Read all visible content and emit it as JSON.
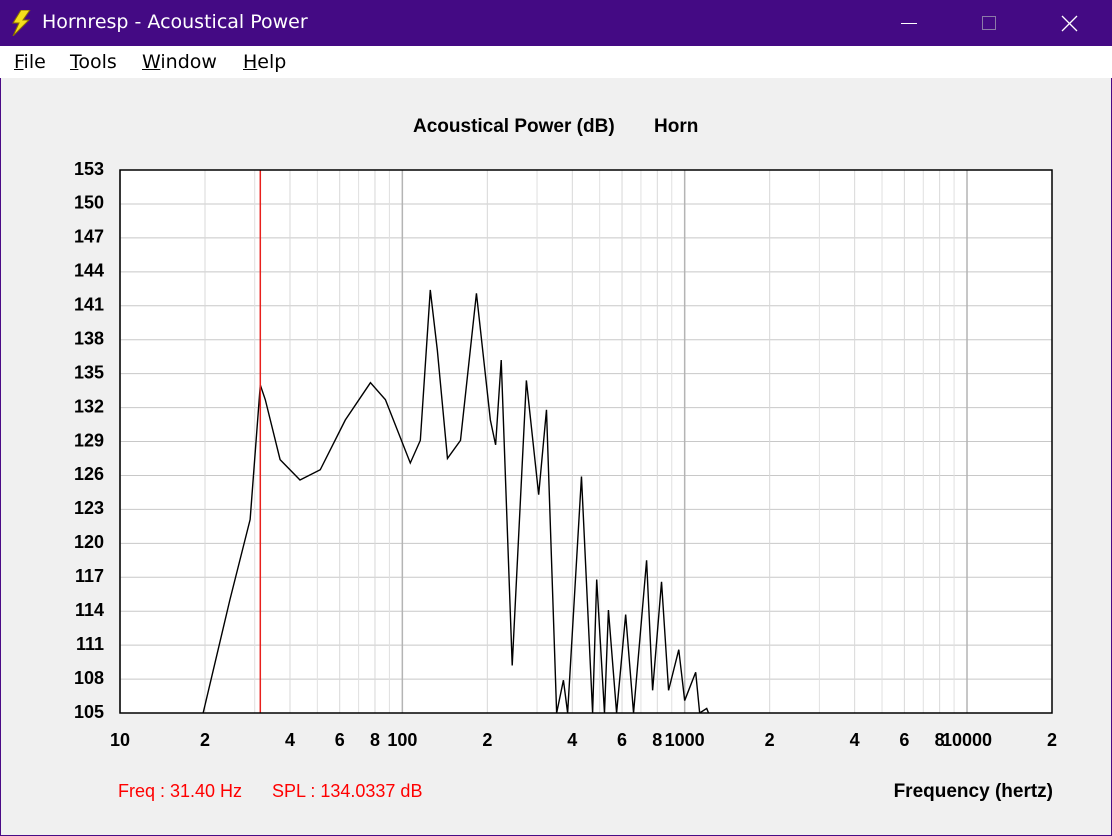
{
  "window": {
    "title": "Hornresp - Acoustical Power"
  },
  "menu": [
    "File",
    "Tools",
    "Window",
    "Help"
  ],
  "chart_data": {
    "type": "line",
    "title": "Acoustical Power (dB)",
    "subtitle": "Horn",
    "x_label": "Frequency (hertz)",
    "log_x": true,
    "grid": true,
    "color": "#000000",
    "x": [
      19.7,
      24.5,
      28.9,
      31.4,
      32.7,
      36.9,
      43.4,
      51.2,
      62.8,
      77.1,
      87.1,
      106.7,
      115.8,
      125.6,
      133,
      144.5,
      160.7,
      183,
      205,
      214,
      224,
      245,
      275,
      304,
      324,
      352,
      372,
      385,
      431,
      472,
      488,
      520,
      537,
      574,
      618,
      659,
      733,
      770,
      828,
      877,
      953,
      1000,
      1094,
      1130,
      1197,
      1215
    ],
    "values": [
      105,
      115,
      122.1,
      134,
      132.7,
      127.4,
      125.6,
      126.5,
      130.9,
      134.2,
      132.7,
      127.1,
      129.1,
      142.4,
      137.1,
      127.5,
      129.1,
      142.1,
      130.9,
      128.7,
      136.2,
      109.2,
      134.4,
      124.3,
      131.8,
      105,
      107.9,
      105,
      125.9,
      105,
      116.8,
      105,
      114.1,
      105,
      113.7,
      105,
      118.5,
      107,
      116.6,
      107,
      110.6,
      106.1,
      108.6,
      105,
      105.4,
      105
    ],
    "xlim": [
      10,
      20000
    ],
    "ylim": [
      105,
      153
    ],
    "xticks": [
      10,
      {
        "value": 20,
        "label": "2"
      },
      {
        "value": 40,
        "label": "4"
      },
      {
        "value": 60,
        "label": "6"
      },
      {
        "value": 80,
        "label": "8"
      },
      100,
      {
        "value": 200,
        "label": "2"
      },
      {
        "value": 400,
        "label": "4"
      },
      {
        "value": 600,
        "label": "6"
      },
      {
        "value": 800,
        "label": "8"
      },
      1000,
      {
        "value": 2000,
        "label": "2"
      },
      {
        "value": 4000,
        "label": "4"
      },
      {
        "value": 6000,
        "label": "6"
      },
      {
        "value": 8000,
        "label": "8"
      },
      10000,
      {
        "value": 20000,
        "label": "2"
      }
    ],
    "x_minor_ticks": [
      30,
      50,
      70,
      90,
      300,
      500,
      700,
      900,
      3000,
      5000,
      7000,
      9000
    ],
    "yticks": [
      105,
      108,
      111,
      114,
      117,
      120,
      123,
      126,
      129,
      132,
      135,
      138,
      141,
      144,
      147,
      150,
      153
    ],
    "cursor": {
      "x": 31.4,
      "color": "#e8201c"
    },
    "status": {
      "freq": "Freq : 31.40 Hz",
      "spl": "SPL : 134.0337 dB",
      "color": "#ff0000"
    }
  }
}
